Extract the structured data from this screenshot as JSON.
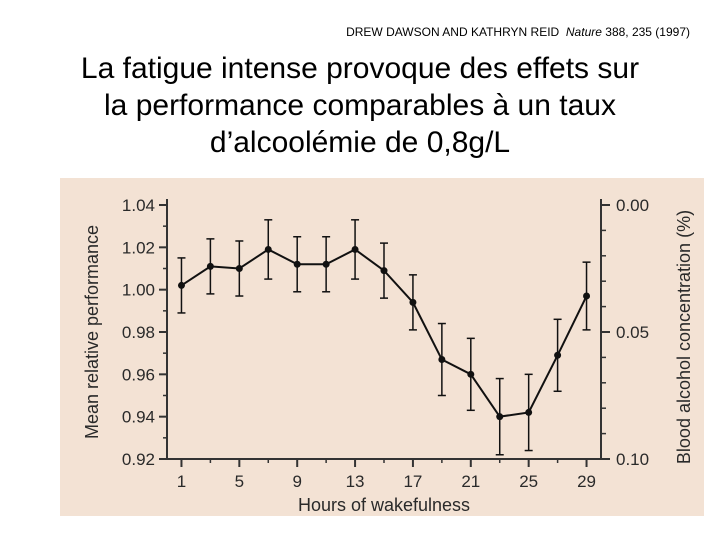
{
  "citation": {
    "authors": "DREW DAWSON AND KATHRYN REID",
    "journal": "Nature",
    "reference": "388, 235 (1997)"
  },
  "title": {
    "line1": "La fatigue intense provoque des effets sur",
    "line2": "la performance comparables à un taux",
    "line3": "d’alcoolémie de 0,8g/L"
  },
  "chart_data": {
    "type": "line",
    "title": "",
    "xlabel": "Hours of wakefulness",
    "ylabel": "Mean relative performance",
    "y2label": "Blood alcohol concentration (%)",
    "x_ticks": [
      1,
      5,
      9,
      13,
      17,
      21,
      25,
      29
    ],
    "y_ticks": [
      "0.92",
      "0.94",
      "0.96",
      "0.98",
      "1.00",
      "1.02",
      "1.04"
    ],
    "y2_ticks": [
      "0.00",
      "0.05",
      "0.10"
    ],
    "xlim": [
      0,
      30
    ],
    "ylim": [
      0.92,
      1.04
    ],
    "y2lim": [
      0.1,
      0.0
    ],
    "grid": false,
    "series": [
      {
        "x": [
          1,
          3,
          5,
          7,
          9,
          11,
          13,
          15,
          17,
          19,
          21,
          23,
          25,
          27,
          29
        ],
        "values": [
          1.002,
          1.011,
          1.01,
          1.019,
          1.012,
          1.012,
          1.019,
          1.009,
          0.994,
          0.967,
          0.96,
          0.94,
          0.942,
          0.969,
          0.997
        ],
        "error": [
          0.013,
          0.013,
          0.013,
          0.014,
          0.013,
          0.013,
          0.014,
          0.013,
          0.013,
          0.017,
          0.017,
          0.018,
          0.018,
          0.017,
          0.016
        ]
      }
    ],
    "colors": {
      "panel_background": "#f3e2d4",
      "line": "#111111",
      "axis": "#333333"
    }
  }
}
